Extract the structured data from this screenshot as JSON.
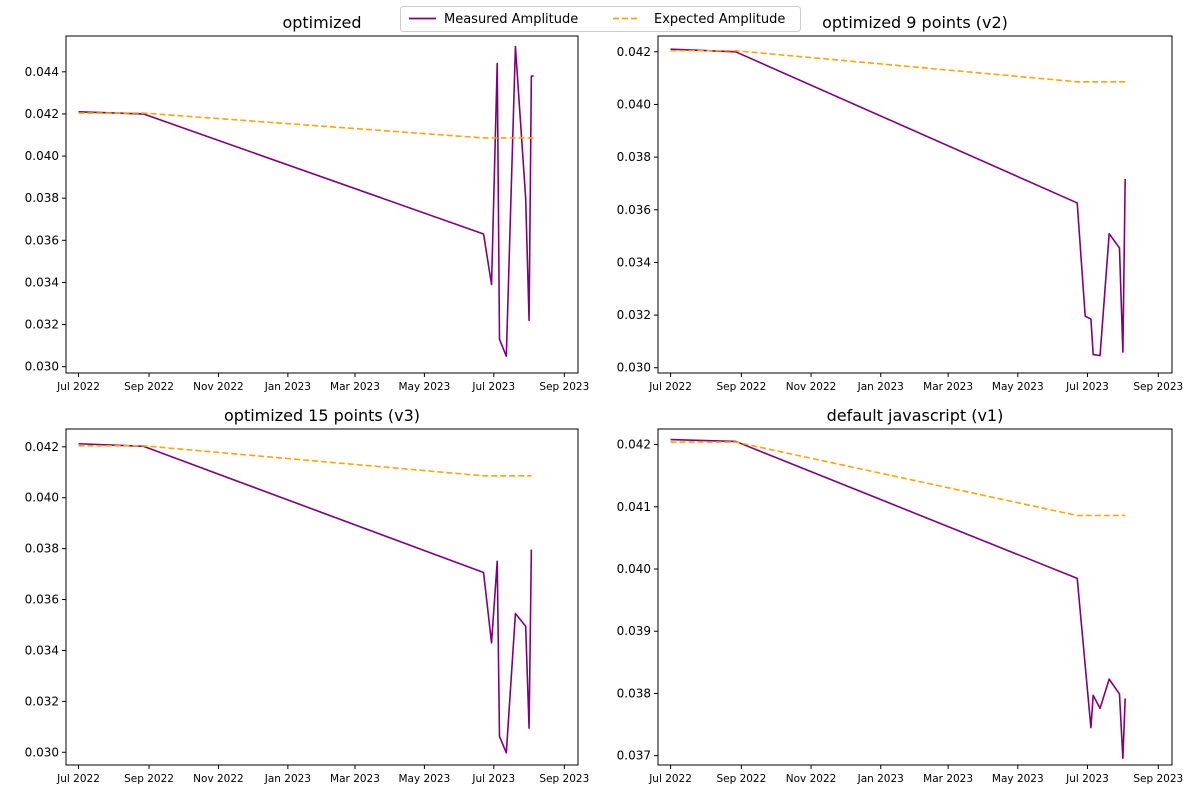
{
  "colors": {
    "measured": "#800080",
    "expected": "#FFA500"
  },
  "legend": {
    "items": [
      {
        "label": "Measured Amplitude",
        "style": "solid",
        "color": "#800080"
      },
      {
        "label": "Expected Amplitude",
        "style": "dashed",
        "color": "#FFA500"
      }
    ],
    "placement": "top-center"
  },
  "x_tick_labels": [
    "Jul 2022",
    "Sep 2022",
    "Nov 2022",
    "Jan 2023",
    "Mar 2023",
    "May 2023",
    "Jul 2023",
    "Sep 2023"
  ],
  "chart_data": [
    {
      "type": "line",
      "title": "optimized",
      "xlabel": "",
      "ylabel": "",
      "x_range": [
        "2022-06-20",
        "2023-09-13"
      ],
      "ylim": [
        0.0297,
        0.0457
      ],
      "yticks": [
        "0.030",
        "0.032",
        "0.034",
        "0.036",
        "0.038",
        "0.040",
        "0.042",
        "0.044"
      ],
      "series": [
        {
          "name": "Measured Amplitude",
          "x": [
            "2022-07-01",
            "2022-08-27",
            "2023-06-22",
            "2023-06-29",
            "2023-07-04",
            "2023-07-06",
            "2023-07-12",
            "2023-07-20",
            "2023-07-29",
            "2023-08-01",
            "2023-08-03",
            "2023-08-05"
          ],
          "y": [
            0.0421,
            0.042,
            0.0363,
            0.0339,
            0.0444,
            0.0313,
            0.0305,
            0.0452,
            0.038,
            0.0322,
            0.0438,
            0.0438
          ]
        },
        {
          "name": "Expected Amplitude",
          "x": [
            "2022-07-01",
            "2022-08-27",
            "2023-06-22",
            "2023-08-05"
          ],
          "y": [
            0.04204,
            0.04204,
            0.04086,
            0.04086
          ]
        }
      ]
    },
    {
      "type": "line",
      "title": "optimized 9 points (v2)",
      "xlabel": "",
      "ylabel": "",
      "x_range": [
        "2022-06-20",
        "2023-09-13"
      ],
      "ylim": [
        0.0298,
        0.0426
      ],
      "yticks": [
        "0.030",
        "0.032",
        "0.034",
        "0.036",
        "0.038",
        "0.040",
        "0.042"
      ],
      "series": [
        {
          "name": "Measured Amplitude",
          "x": [
            "2022-07-01",
            "2022-08-27",
            "2023-06-22",
            "2023-06-29",
            "2023-07-04",
            "2023-07-06",
            "2023-07-12",
            "2023-07-20",
            "2023-07-29",
            "2023-08-01",
            "2023-08-03"
          ],
          "y": [
            0.0421,
            0.042,
            0.03626,
            0.03196,
            0.03185,
            0.0305,
            0.03046,
            0.03509,
            0.03455,
            0.0306,
            0.03717
          ]
        },
        {
          "name": "Expected Amplitude",
          "x": [
            "2022-07-01",
            "2022-08-27",
            "2023-06-22",
            "2023-08-03"
          ],
          "y": [
            0.04204,
            0.04204,
            0.04086,
            0.04086
          ]
        }
      ]
    },
    {
      "type": "line",
      "title": "optimized 15 points (v3)",
      "xlabel": "",
      "ylabel": "",
      "x_range": [
        "2022-06-20",
        "2023-09-13"
      ],
      "ylim": [
        0.0295,
        0.0427
      ],
      "yticks": [
        "0.030",
        "0.032",
        "0.034",
        "0.036",
        "0.038",
        "0.040",
        "0.042"
      ],
      "series": [
        {
          "name": "Measured Amplitude",
          "x": [
            "2022-07-01",
            "2022-08-27",
            "2023-06-22",
            "2023-06-29",
            "2023-07-04",
            "2023-07-06",
            "2023-07-12",
            "2023-07-20",
            "2023-07-29",
            "2023-08-01",
            "2023-08-03"
          ],
          "y": [
            0.04212,
            0.04202,
            0.03706,
            0.0343,
            0.0375,
            0.03062,
            0.02998,
            0.03545,
            0.03495,
            0.03095,
            0.03796
          ]
        },
        {
          "name": "Expected Amplitude",
          "x": [
            "2022-07-01",
            "2022-08-27",
            "2023-06-22",
            "2023-08-03"
          ],
          "y": [
            0.04204,
            0.04204,
            0.04086,
            0.04086
          ]
        }
      ]
    },
    {
      "type": "line",
      "title": "default javascript (v1)",
      "xlabel": "",
      "ylabel": "",
      "x_range": [
        "2022-06-20",
        "2023-09-13"
      ],
      "ylim": [
        0.03685,
        0.04225
      ],
      "yticks": [
        "0.037",
        "0.038",
        "0.039",
        "0.040",
        "0.041",
        "0.042"
      ],
      "series": [
        {
          "name": "Measured Amplitude",
          "x": [
            "2022-07-01",
            "2022-08-27",
            "2023-06-22",
            "2023-07-04",
            "2023-07-06",
            "2023-07-12",
            "2023-07-20",
            "2023-07-29",
            "2023-08-01",
            "2023-08-03"
          ],
          "y": [
            0.04208,
            0.04205,
            0.03985,
            0.03745,
            0.03797,
            0.03776,
            0.03823,
            0.03799,
            0.03696,
            0.03792
          ]
        },
        {
          "name": "Expected Amplitude",
          "x": [
            "2022-07-01",
            "2022-08-27",
            "2023-06-22",
            "2023-08-03"
          ],
          "y": [
            0.04204,
            0.04204,
            0.04086,
            0.04086
          ]
        }
      ]
    }
  ]
}
